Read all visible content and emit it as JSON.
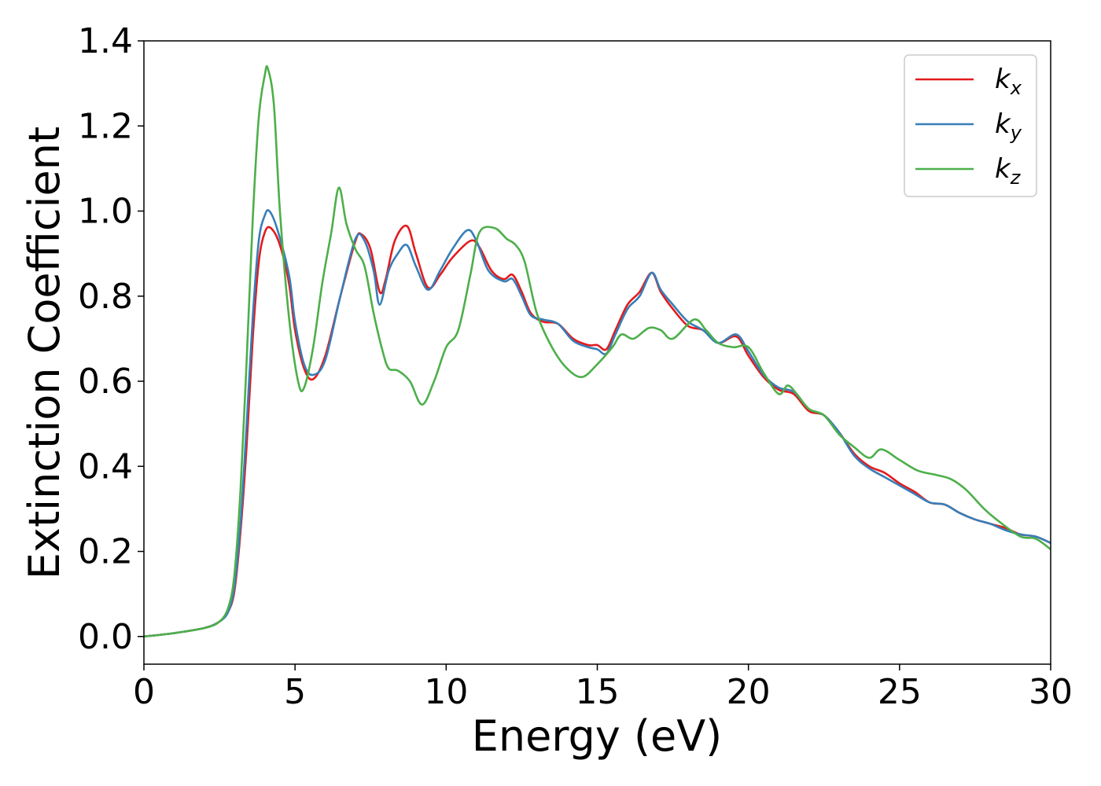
{
  "chart_data": {
    "type": "line",
    "xlabel": "Energy (eV)",
    "ylabel": "Extinction Coefficient",
    "xlim": [
      0,
      30
    ],
    "ylim": [
      -0.065,
      1.4
    ],
    "xticks": [
      0,
      5,
      10,
      15,
      20,
      25,
      30
    ],
    "yticks": [
      0.0,
      0.2,
      0.4,
      0.6,
      0.8,
      1.0,
      1.2,
      1.4
    ],
    "xtick_labels": [
      "0",
      "5",
      "10",
      "15",
      "20",
      "25",
      "30"
    ],
    "ytick_labels": [
      "0.0",
      "0.2",
      "0.4",
      "0.6",
      "0.8",
      "1.0",
      "1.2",
      "1.4"
    ],
    "grid": false,
    "legend_position": "top-right",
    "series": [
      {
        "name": "kx",
        "label_main": "k",
        "label_sub": "x",
        "color": "#e41a1c",
        "points": [
          [
            0,
            0.0
          ],
          [
            1,
            0.008
          ],
          [
            2,
            0.02
          ],
          [
            2.5,
            0.035
          ],
          [
            2.8,
            0.06
          ],
          [
            3.0,
            0.11
          ],
          [
            3.2,
            0.25
          ],
          [
            3.4,
            0.45
          ],
          [
            3.6,
            0.7
          ],
          [
            3.8,
            0.88
          ],
          [
            4.0,
            0.95
          ],
          [
            4.2,
            0.96
          ],
          [
            4.5,
            0.92
          ],
          [
            4.8,
            0.83
          ],
          [
            5.0,
            0.72
          ],
          [
            5.3,
            0.63
          ],
          [
            5.6,
            0.605
          ],
          [
            6.0,
            0.66
          ],
          [
            6.5,
            0.8
          ],
          [
            7.0,
            0.93
          ],
          [
            7.2,
            0.945
          ],
          [
            7.5,
            0.91
          ],
          [
            7.8,
            0.81
          ],
          [
            8.0,
            0.84
          ],
          [
            8.3,
            0.93
          ],
          [
            8.7,
            0.965
          ],
          [
            9.0,
            0.9
          ],
          [
            9.4,
            0.82
          ],
          [
            9.8,
            0.85
          ],
          [
            10.2,
            0.89
          ],
          [
            10.8,
            0.93
          ],
          [
            11.1,
            0.915
          ],
          [
            11.5,
            0.86
          ],
          [
            11.9,
            0.84
          ],
          [
            12.2,
            0.85
          ],
          [
            12.5,
            0.81
          ],
          [
            12.8,
            0.76
          ],
          [
            13.2,
            0.74
          ],
          [
            13.7,
            0.735
          ],
          [
            14.2,
            0.7
          ],
          [
            14.7,
            0.685
          ],
          [
            15.0,
            0.685
          ],
          [
            15.3,
            0.675
          ],
          [
            15.6,
            0.72
          ],
          [
            16.0,
            0.78
          ],
          [
            16.4,
            0.81
          ],
          [
            16.8,
            0.855
          ],
          [
            17.1,
            0.81
          ],
          [
            17.5,
            0.77
          ],
          [
            18.0,
            0.73
          ],
          [
            18.5,
            0.72
          ],
          [
            19.0,
            0.69
          ],
          [
            19.6,
            0.705
          ],
          [
            20.0,
            0.66
          ],
          [
            20.5,
            0.61
          ],
          [
            21.0,
            0.58
          ],
          [
            21.5,
            0.57
          ],
          [
            22.0,
            0.53
          ],
          [
            22.5,
            0.52
          ],
          [
            23.0,
            0.48
          ],
          [
            23.5,
            0.43
          ],
          [
            24.0,
            0.4
          ],
          [
            24.5,
            0.385
          ],
          [
            25.0,
            0.36
          ],
          [
            25.5,
            0.34
          ],
          [
            26.0,
            0.315
          ],
          [
            26.5,
            0.31
          ],
          [
            27.0,
            0.29
          ],
          [
            27.5,
            0.275
          ],
          [
            28.0,
            0.265
          ],
          [
            28.5,
            0.255
          ],
          [
            29.0,
            0.24
          ],
          [
            29.5,
            0.235
          ],
          [
            30.0,
            0.22
          ]
        ]
      },
      {
        "name": "ky",
        "label_main": "k",
        "label_sub": "y",
        "color": "#377eb8",
        "points": [
          [
            0,
            0.0
          ],
          [
            1,
            0.008
          ],
          [
            2,
            0.02
          ],
          [
            2.5,
            0.035
          ],
          [
            2.8,
            0.06
          ],
          [
            3.0,
            0.12
          ],
          [
            3.2,
            0.27
          ],
          [
            3.4,
            0.5
          ],
          [
            3.6,
            0.75
          ],
          [
            3.8,
            0.93
          ],
          [
            4.0,
            0.99
          ],
          [
            4.15,
            1.0
          ],
          [
            4.4,
            0.96
          ],
          [
            4.8,
            0.85
          ],
          [
            5.0,
            0.74
          ],
          [
            5.3,
            0.64
          ],
          [
            5.6,
            0.615
          ],
          [
            6.0,
            0.65
          ],
          [
            6.5,
            0.8
          ],
          [
            7.0,
            0.935
          ],
          [
            7.3,
            0.93
          ],
          [
            7.6,
            0.86
          ],
          [
            7.8,
            0.78
          ],
          [
            8.1,
            0.86
          ],
          [
            8.4,
            0.9
          ],
          [
            8.7,
            0.92
          ],
          [
            9.0,
            0.87
          ],
          [
            9.4,
            0.815
          ],
          [
            9.8,
            0.86
          ],
          [
            10.2,
            0.91
          ],
          [
            10.7,
            0.955
          ],
          [
            11.0,
            0.93
          ],
          [
            11.4,
            0.86
          ],
          [
            11.9,
            0.835
          ],
          [
            12.2,
            0.84
          ],
          [
            12.5,
            0.8
          ],
          [
            12.8,
            0.755
          ],
          [
            13.2,
            0.745
          ],
          [
            13.7,
            0.735
          ],
          [
            14.2,
            0.695
          ],
          [
            14.7,
            0.68
          ],
          [
            15.0,
            0.675
          ],
          [
            15.3,
            0.665
          ],
          [
            15.6,
            0.71
          ],
          [
            16.0,
            0.77
          ],
          [
            16.4,
            0.8
          ],
          [
            16.8,
            0.855
          ],
          [
            17.1,
            0.815
          ],
          [
            17.5,
            0.78
          ],
          [
            18.0,
            0.74
          ],
          [
            18.5,
            0.72
          ],
          [
            19.0,
            0.69
          ],
          [
            19.6,
            0.71
          ],
          [
            20.0,
            0.67
          ],
          [
            20.5,
            0.615
          ],
          [
            21.0,
            0.585
          ],
          [
            21.5,
            0.575
          ],
          [
            22.0,
            0.535
          ],
          [
            22.5,
            0.52
          ],
          [
            23.0,
            0.48
          ],
          [
            23.5,
            0.425
          ],
          [
            24.0,
            0.395
          ],
          [
            24.5,
            0.375
          ],
          [
            25.0,
            0.355
          ],
          [
            25.5,
            0.335
          ],
          [
            26.0,
            0.315
          ],
          [
            26.5,
            0.31
          ],
          [
            27.0,
            0.29
          ],
          [
            27.5,
            0.275
          ],
          [
            28.0,
            0.265
          ],
          [
            28.5,
            0.25
          ],
          [
            29.0,
            0.24
          ],
          [
            29.5,
            0.235
          ],
          [
            30.0,
            0.22
          ]
        ]
      },
      {
        "name": "kz",
        "label_main": "k",
        "label_sub": "z",
        "color": "#4daf4a",
        "points": [
          [
            0,
            0.0
          ],
          [
            1,
            0.008
          ],
          [
            2,
            0.02
          ],
          [
            2.5,
            0.035
          ],
          [
            2.8,
            0.07
          ],
          [
            3.0,
            0.15
          ],
          [
            3.2,
            0.35
          ],
          [
            3.4,
            0.65
          ],
          [
            3.6,
            0.98
          ],
          [
            3.8,
            1.22
          ],
          [
            4.0,
            1.32
          ],
          [
            4.1,
            1.335
          ],
          [
            4.3,
            1.25
          ],
          [
            4.5,
            1.0
          ],
          [
            4.8,
            0.75
          ],
          [
            5.1,
            0.6
          ],
          [
            5.3,
            0.585
          ],
          [
            5.6,
            0.68
          ],
          [
            5.9,
            0.83
          ],
          [
            6.2,
            0.95
          ],
          [
            6.45,
            1.055
          ],
          [
            6.7,
            0.97
          ],
          [
            7.0,
            0.91
          ],
          [
            7.3,
            0.87
          ],
          [
            7.6,
            0.76
          ],
          [
            7.9,
            0.67
          ],
          [
            8.1,
            0.63
          ],
          [
            8.4,
            0.625
          ],
          [
            8.8,
            0.6
          ],
          [
            9.2,
            0.545
          ],
          [
            9.6,
            0.6
          ],
          [
            10.0,
            0.68
          ],
          [
            10.4,
            0.72
          ],
          [
            10.8,
            0.85
          ],
          [
            11.1,
            0.95
          ],
          [
            11.6,
            0.96
          ],
          [
            12.0,
            0.935
          ],
          [
            12.3,
            0.92
          ],
          [
            12.6,
            0.88
          ],
          [
            13.0,
            0.76
          ],
          [
            13.5,
            0.68
          ],
          [
            14.0,
            0.63
          ],
          [
            14.5,
            0.61
          ],
          [
            15.0,
            0.64
          ],
          [
            15.5,
            0.68
          ],
          [
            15.8,
            0.71
          ],
          [
            16.2,
            0.7
          ],
          [
            16.7,
            0.725
          ],
          [
            17.1,
            0.72
          ],
          [
            17.5,
            0.7
          ],
          [
            18.2,
            0.745
          ],
          [
            18.6,
            0.72
          ],
          [
            19.0,
            0.69
          ],
          [
            19.5,
            0.68
          ],
          [
            20.0,
            0.68
          ],
          [
            20.5,
            0.62
          ],
          [
            21.0,
            0.57
          ],
          [
            21.3,
            0.59
          ],
          [
            21.6,
            0.57
          ],
          [
            22.0,
            0.535
          ],
          [
            22.5,
            0.52
          ],
          [
            23.0,
            0.475
          ],
          [
            23.5,
            0.445
          ],
          [
            24.0,
            0.42
          ],
          [
            24.4,
            0.44
          ],
          [
            25.0,
            0.415
          ],
          [
            25.6,
            0.39
          ],
          [
            26.2,
            0.38
          ],
          [
            26.7,
            0.37
          ],
          [
            27.2,
            0.345
          ],
          [
            27.8,
            0.3
          ],
          [
            28.3,
            0.27
          ],
          [
            29.0,
            0.235
          ],
          [
            29.5,
            0.23
          ],
          [
            30.0,
            0.205
          ]
        ]
      }
    ]
  }
}
